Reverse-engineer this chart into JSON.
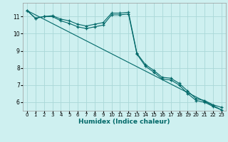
{
  "xlabel": "Humidex (Indice chaleur)",
  "bg_color": "#cef0f0",
  "grid_color": "#aad8d8",
  "line_color": "#006868",
  "line1_x": [
    0,
    1,
    2,
    3,
    4,
    5,
    6,
    7,
    8,
    9,
    10,
    11,
    12,
    13,
    14,
    15,
    16,
    17,
    18,
    19,
    20,
    21,
    22,
    23
  ],
  "line1_y": [
    11.35,
    10.9,
    11.0,
    11.05,
    10.85,
    10.75,
    10.55,
    10.45,
    10.55,
    10.65,
    11.2,
    11.2,
    11.25,
    8.85,
    8.2,
    7.85,
    7.45,
    7.4,
    7.1,
    6.65,
    6.2,
    6.1,
    5.85,
    5.7
  ],
  "line2_x": [
    0,
    1,
    2,
    3,
    4,
    5,
    6,
    7,
    8,
    9,
    10,
    11,
    12,
    13,
    14,
    15,
    16,
    17,
    18,
    19,
    20,
    21,
    22,
    23
  ],
  "line2_y": [
    11.35,
    10.9,
    11.0,
    11.0,
    10.75,
    10.6,
    10.4,
    10.3,
    10.4,
    10.5,
    11.1,
    11.1,
    11.15,
    8.8,
    8.1,
    7.75,
    7.35,
    7.3,
    7.0,
    6.5,
    6.1,
    6.0,
    5.75,
    5.55
  ],
  "line3_x": [
    0,
    23
  ],
  "line3_y": [
    11.35,
    5.55
  ],
  "xlim": [
    -0.5,
    23.5
  ],
  "ylim": [
    5.5,
    11.8
  ],
  "yticks": [
    6,
    7,
    8,
    9,
    10,
    11
  ],
  "xticks": [
    0,
    1,
    2,
    3,
    4,
    5,
    6,
    7,
    8,
    9,
    10,
    11,
    12,
    13,
    14,
    15,
    16,
    17,
    18,
    19,
    20,
    21,
    22,
    23
  ]
}
